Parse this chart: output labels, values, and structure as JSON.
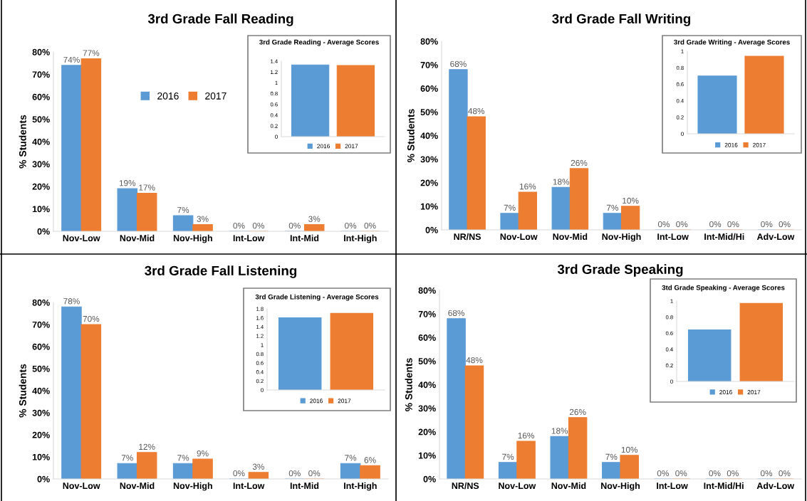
{
  "chart_data": [
    {
      "type": "bar",
      "title": "3rd Grade Fall Reading",
      "ylabel": "% Students",
      "categories": [
        "Nov-Low",
        "Nov-Mid",
        "Nov-High",
        "Int-Low",
        "Int-Mid",
        "Int-High"
      ],
      "series": [
        {
          "name": "2016",
          "color": "#5b9bd5",
          "values": [
            74,
            19,
            7,
            0,
            0,
            0
          ],
          "value_labels": [
            "74%",
            "19%",
            "7%",
            "0%",
            "0%",
            "0%"
          ]
        },
        {
          "name": "2017",
          "color": "#ed7d31",
          "values": [
            77,
            17,
            3,
            0,
            3,
            0
          ],
          "value_labels": [
            "77%",
            "17%",
            "3%",
            "0%",
            "3%",
            "0%"
          ]
        }
      ],
      "ylim": [
        0,
        80
      ],
      "yticks": [
        {
          "value": 0,
          "label": "0%"
        },
        {
          "value": 10,
          "label": "10%"
        },
        {
          "value": 20,
          "label": "20%"
        },
        {
          "value": 30,
          "label": "30%"
        },
        {
          "value": 40,
          "label": "40%"
        },
        {
          "value": 50,
          "label": "50%"
        },
        {
          "value": 60,
          "label": "60%"
        },
        {
          "value": 70,
          "label": "70%"
        },
        {
          "value": 80,
          "label": "80%"
        }
      ],
      "legend": "center"
    },
    {
      "type": "bar",
      "title": "3rd Grade Reading - Average Scores",
      "categories": [
        null
      ],
      "series": [
        {
          "name": "2016",
          "color": "#5b9bd5",
          "values": [
            1.33
          ]
        },
        {
          "name": "2017",
          "color": "#ed7d31",
          "values": [
            1.32
          ]
        }
      ],
      "ylim": [
        0,
        1.4
      ],
      "yticks": [
        0,
        0.2,
        0.4,
        0.6,
        0.8,
        1,
        1.2,
        1.4
      ],
      "legend": "bottom"
    },
    {
      "type": "bar",
      "title": "3rd Grade Fall Writing",
      "ylabel": "% Students",
      "categories": [
        "NR/NS",
        "Nov-Low",
        "Nov-Mid",
        "Nov-High",
        "Int-Low",
        "Int-Mid/Hi",
        "Adv-Low"
      ],
      "series": [
        {
          "color": "#5b9bd5",
          "values": [
            68,
            7,
            18,
            7,
            0,
            0,
            0
          ],
          "value_labels": [
            "68%",
            "7%",
            "18%",
            "7%",
            "0%",
            "0%",
            "0%"
          ]
        },
        {
          "color": "#ed7d31",
          "values": [
            48,
            16,
            26,
            10,
            0,
            0,
            0
          ],
          "value_labels": [
            "48%",
            "16%",
            "26%",
            "10%",
            "0%",
            "0%",
            "0%"
          ]
        }
      ],
      "ylim": [
        0,
        80
      ],
      "yticks": [
        {
          "value": 0,
          "label": "0%"
        },
        {
          "value": 10,
          "label": "10%"
        },
        {
          "value": 20,
          "label": "20%"
        },
        {
          "value": 30,
          "label": "30%"
        },
        {
          "value": 40,
          "label": "40%"
        },
        {
          "value": 50,
          "label": "50%"
        },
        {
          "value": 60,
          "label": "60%"
        },
        {
          "value": 70,
          "label": "70%"
        },
        {
          "value": 80,
          "label": "80%"
        }
      ]
    },
    {
      "type": "bar",
      "title": "3rd Grade Writing - Average Scores",
      "categories": [
        null
      ],
      "series": [
        {
          "name": "2016",
          "color": "#5b9bd5",
          "values": [
            0.7
          ]
        },
        {
          "name": "2017",
          "color": "#ed7d31",
          "values": [
            0.94
          ]
        }
      ],
      "ylim": [
        0,
        1
      ],
      "yticks": [
        0,
        0.2,
        0.4,
        0.6,
        0.8,
        1
      ],
      "legend": "bottom"
    },
    {
      "type": "bar",
      "title": "3rd Grade Fall Listening",
      "ylabel": "% Students",
      "categories": [
        "Nov-Low",
        "Nov-Mid",
        "Nov-High",
        "Int-Low",
        "Int-Mid",
        "Int-High"
      ],
      "series": [
        {
          "color": "#5b9bd5",
          "values": [
            78,
            7,
            7,
            0,
            0,
            7
          ],
          "value_labels": [
            "78%",
            "7%",
            "7%",
            "0%",
            "0%",
            "7%"
          ]
        },
        {
          "color": "#ed7d31",
          "values": [
            70,
            12,
            9,
            3,
            0,
            6
          ],
          "value_labels": [
            "70%",
            "12%",
            "9%",
            "3%",
            "0%",
            "6%"
          ]
        }
      ],
      "ylim": [
        0,
        80
      ],
      "yticks": [
        {
          "value": 0,
          "label": "0%"
        },
        {
          "value": 10,
          "label": "10%"
        },
        {
          "value": 20,
          "label": "20%"
        },
        {
          "value": 30,
          "label": "30%"
        },
        {
          "value": 40,
          "label": "40%"
        },
        {
          "value": 50,
          "label": "50%"
        },
        {
          "value": 60,
          "label": "60%"
        },
        {
          "value": 70,
          "label": "70%"
        },
        {
          "value": 80,
          "label": "80%"
        }
      ]
    },
    {
      "type": "bar",
      "title": "3rd Grade Listening - Average Scores",
      "categories": [
        null
      ],
      "series": [
        {
          "name": "2016",
          "color": "#5b9bd5",
          "values": [
            1.6
          ]
        },
        {
          "name": "2017",
          "color": "#ed7d31",
          "values": [
            1.7
          ]
        }
      ],
      "ylim": [
        0,
        1.8
      ],
      "yticks": [
        0,
        0.2,
        0.4,
        0.6,
        0.8,
        1,
        1.2,
        1.4,
        1.6,
        1.8
      ],
      "legend": "bottom"
    },
    {
      "type": "bar",
      "title": "3rd Grade Speaking",
      "ylabel": "% Students",
      "categories": [
        "NR/NS",
        "Nov-Low",
        "Nov-Mid",
        "Nov-High",
        "Int-Low",
        "Int-Mid/Hi",
        "Adv-Low"
      ],
      "series": [
        {
          "color": "#5b9bd5",
          "values": [
            68,
            7,
            18,
            7,
            0,
            0,
            0
          ],
          "value_labels": [
            "68%",
            "7%",
            "18%",
            "7%",
            "0%",
            "0%",
            "0%"
          ]
        },
        {
          "color": "#ed7d31",
          "values": [
            48,
            16,
            26,
            10,
            0,
            0,
            0
          ],
          "value_labels": [
            "48%",
            "16%",
            "26%",
            "10%",
            "0%",
            "0%",
            "0%"
          ]
        }
      ],
      "ylim": [
        0,
        80
      ],
      "yticks": [
        {
          "value": 0,
          "label": "0%"
        },
        {
          "value": 10,
          "label": "10%"
        },
        {
          "value": 20,
          "label": "20%"
        },
        {
          "value": 30,
          "label": "30%"
        },
        {
          "value": 40,
          "label": "40%"
        },
        {
          "value": 50,
          "label": "50%"
        },
        {
          "value": 60,
          "label": "60%"
        },
        {
          "value": 70,
          "label": "70%"
        },
        {
          "value": 80,
          "label": "80%"
        }
      ]
    },
    {
      "type": "bar",
      "title": "3td Grade Speaking - Average Scores",
      "categories": [
        null
      ],
      "series": [
        {
          "name": "2016",
          "color": "#5b9bd5",
          "values": [
            0.64
          ]
        },
        {
          "name": "2017",
          "color": "#ed7d31",
          "values": [
            0.97
          ]
        }
      ],
      "ylim": [
        0,
        1
      ],
      "yticks": [
        0,
        0.2,
        0.4,
        0.6,
        0.8,
        1
      ],
      "legend": "bottom"
    }
  ]
}
